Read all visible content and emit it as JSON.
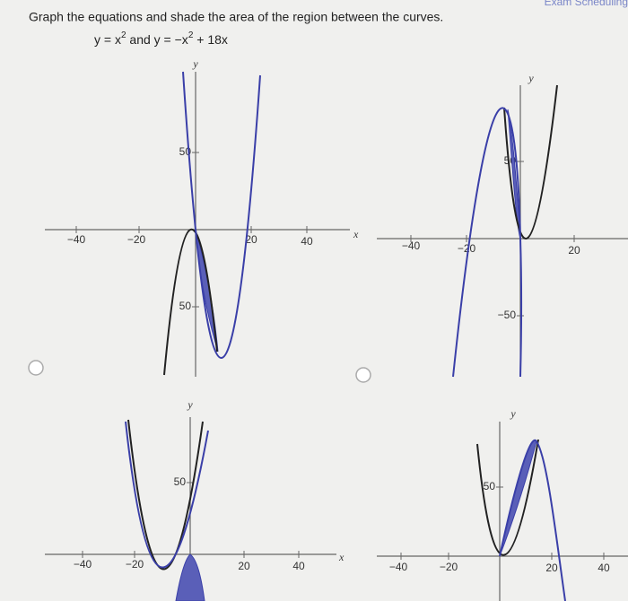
{
  "header": {
    "link": "Exam Scheduling"
  },
  "question": "Graph the equations and shade the area of the region between the curves.",
  "equation": {
    "parts": [
      "y = x",
      "2",
      " and y = −x",
      "2",
      " + 18x"
    ]
  },
  "options": [
    {
      "y_axis": "y",
      "x_axis": "x",
      "x_ticks": [
        "−40",
        "−20",
        "20",
        "40"
      ],
      "y_ticks": [
        "50",
        "50"
      ]
    },
    {
      "y_axis": "y",
      "x_ticks": [
        "−40",
        "−20",
        "20"
      ],
      "y_ticks": [
        "50",
        "−50"
      ]
    },
    {
      "y_axis": "y",
      "x_axis": "x",
      "x_ticks": [
        "−40",
        "−20",
        "20",
        "40"
      ],
      "y_ticks": [
        "50"
      ]
    },
    {
      "y_axis": "y",
      "x_ticks": [
        "−40",
        "−20",
        "20",
        "40"
      ],
      "y_ticks": [
        "50"
      ]
    }
  ]
}
